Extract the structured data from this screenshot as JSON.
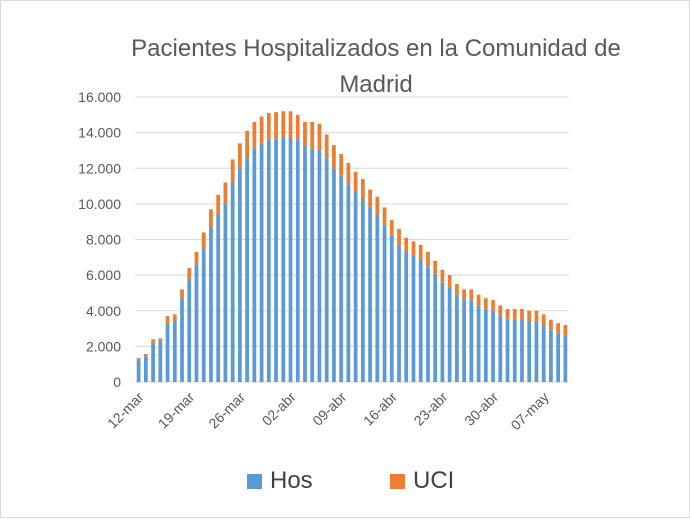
{
  "chart_data": {
    "type": "bar",
    "stacked": true,
    "title": "Pacientes Hospitalizados en la Comunidad de Madrid",
    "xlabel": "",
    "ylabel": "",
    "ylim": [
      0,
      16000
    ],
    "yticks": [
      0,
      2000,
      4000,
      6000,
      8000,
      10000,
      12000,
      14000,
      16000
    ],
    "ytick_labels": [
      "0",
      "2.000",
      "4.000",
      "6.000",
      "8.000",
      "10.000",
      "12.000",
      "14.000",
      "16.000"
    ],
    "x_tick_labels": [
      "12-mar",
      "19-mar",
      "26-mar",
      "02-abr",
      "09-abr",
      "16-abr",
      "23-abr",
      "30-abr",
      "07-may"
    ],
    "x_tick_every": 7,
    "grid": "horizontal",
    "legend_position": "bottom",
    "categories": [
      "12-mar",
      "13-mar",
      "14-mar",
      "15-mar",
      "16-mar",
      "17-mar",
      "18-mar",
      "19-mar",
      "20-mar",
      "21-mar",
      "22-mar",
      "23-mar",
      "24-mar",
      "25-mar",
      "26-mar",
      "27-mar",
      "28-mar",
      "29-mar",
      "30-mar",
      "31-mar",
      "01-abr",
      "02-abr",
      "03-abr",
      "04-abr",
      "05-abr",
      "06-abr",
      "07-abr",
      "08-abr",
      "09-abr",
      "10-abr",
      "11-abr",
      "12-abr",
      "13-abr",
      "14-abr",
      "15-abr",
      "16-abr",
      "17-abr",
      "18-abr",
      "19-abr",
      "20-abr",
      "21-abr",
      "22-abr",
      "23-abr",
      "24-abr",
      "25-abr",
      "26-abr",
      "27-abr",
      "28-abr",
      "29-abr",
      "30-abr",
      "01-may",
      "02-may",
      "03-may",
      "04-may",
      "05-may",
      "06-may",
      "07-may",
      "08-may",
      "09-may",
      "10-may"
    ],
    "series": [
      {
        "name": "Hos",
        "color": "#5b9bd5",
        "values": [
          1250,
          1450,
          2200,
          2250,
          3300,
          3400,
          4700,
          5800,
          6600,
          7500,
          8700,
          9400,
          10000,
          11200,
          12000,
          12600,
          13100,
          13400,
          13600,
          13600,
          13700,
          13700,
          13600,
          13300,
          13100,
          13000,
          12600,
          12000,
          11600,
          11100,
          10700,
          10300,
          9800,
          9400,
          8800,
          8200,
          7700,
          7300,
          7100,
          6900,
          6500,
          6100,
          5600,
          5300,
          4900,
          4600,
          4600,
          4300,
          4100,
          4000,
          3700,
          3500,
          3500,
          3500,
          3400,
          3400,
          3200,
          2900,
          2700,
          2600
        ]
      },
      {
        "name": "UCI",
        "color": "#ed7d31",
        "values": [
          100,
          120,
          200,
          200,
          400,
          400,
          500,
          600,
          700,
          900,
          1000,
          1100,
          1200,
          1300,
          1400,
          1500,
          1500,
          1500,
          1500,
          1550,
          1500,
          1500,
          1400,
          1300,
          1500,
          1500,
          1300,
          1300,
          1200,
          1200,
          1100,
          1100,
          1000,
          1000,
          1000,
          900,
          900,
          800,
          800,
          800,
          800,
          700,
          700,
          700,
          600,
          600,
          600,
          600,
          600,
          600,
          600,
          600,
          600,
          600,
          600,
          600,
          600,
          600,
          600,
          600
        ]
      }
    ]
  }
}
